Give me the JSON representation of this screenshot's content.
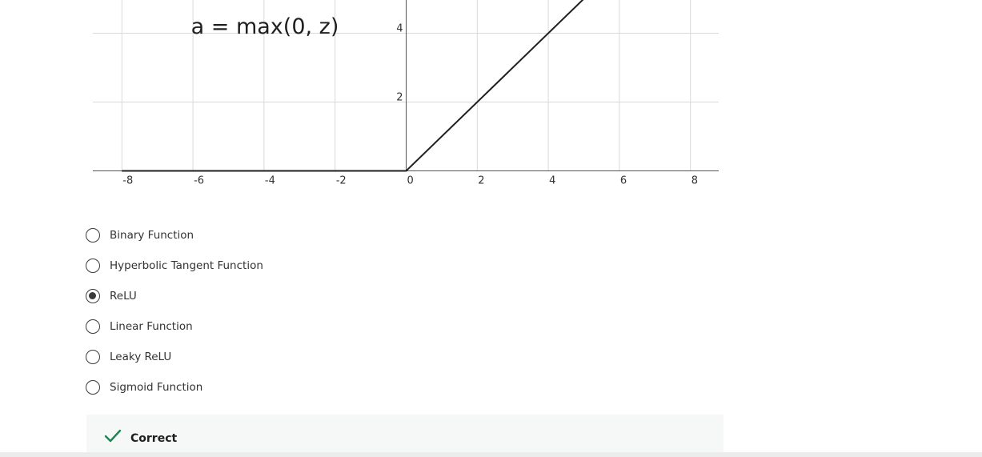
{
  "chart_data": {
    "type": "line",
    "title": "a = max(0, z)",
    "x_ticks": [
      -8,
      -6,
      -4,
      -2,
      0,
      2,
      4,
      6,
      8
    ],
    "y_ticks": [
      2,
      4
    ],
    "xlim": [
      -8.8,
      8.8
    ],
    "ylim": [
      0,
      5
    ],
    "grid": true,
    "series": [
      {
        "x": [
          -8,
          0,
          5
        ],
        "y": [
          0,
          0,
          5
        ]
      }
    ]
  },
  "colors": {
    "line": "#1f1f1f",
    "grid": "#d9d9d9",
    "axis": "#555555",
    "check": "#1f8354",
    "feedback_bg": "#f6f8f7"
  },
  "options": [
    {
      "label": "Binary Function",
      "selected": false
    },
    {
      "label": "Hyperbolic Tangent Function",
      "selected": false
    },
    {
      "label": "ReLU",
      "selected": true
    },
    {
      "label": "Linear Function",
      "selected": false
    },
    {
      "label": "Leaky ReLU",
      "selected": false
    },
    {
      "label": "Sigmoid Function",
      "selected": false
    }
  ],
  "feedback": {
    "icon": "checkmark-icon",
    "text": "Correct"
  }
}
